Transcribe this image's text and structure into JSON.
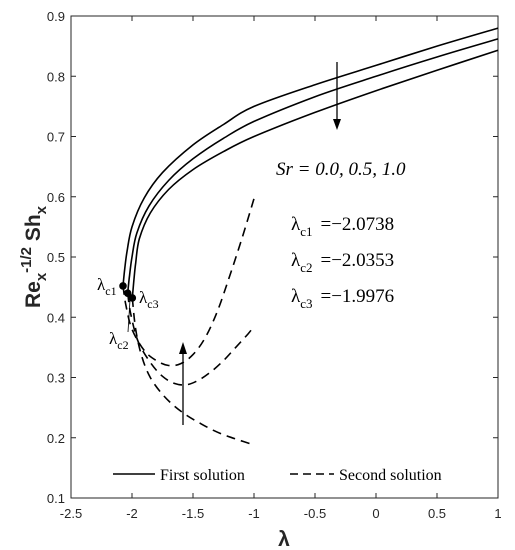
{
  "chart_data": {
    "type": "line",
    "xlabel": "λ",
    "ylabel": {
      "base": "Re",
      "sub1": "x",
      "sup": "-1/2",
      "mid": " Sh",
      "sub2": "x"
    },
    "xlim": [
      -2.5,
      1
    ],
    "ylim": [
      0.1,
      0.9
    ],
    "xticks": [
      -2.5,
      -2,
      -1.5,
      -1,
      -0.5,
      0,
      0.5,
      1
    ],
    "xtick_labels": [
      "-2.5",
      "-2",
      "-1.5",
      "-1",
      "-0.5",
      "0",
      "0.5",
      "1"
    ],
    "yticks": [
      0.1,
      0.2,
      0.3,
      0.4,
      0.5,
      0.6,
      0.7,
      0.8,
      0.9
    ],
    "ytick_labels": [
      "0.1",
      "0.2",
      "0.3",
      "0.4",
      "0.5",
      "0.6",
      "0.7",
      "0.8",
      "0.9"
    ],
    "grid": false,
    "legend": {
      "position": "bottom",
      "entries": [
        {
          "label": "First solution",
          "style": "solid"
        },
        {
          "label": "Second solution",
          "style": "dashed"
        }
      ]
    },
    "series": [
      {
        "style": "solid",
        "x": [
          -2.0738,
          -2.06,
          -2.04,
          -2.0,
          -1.9,
          -1.75,
          -1.5,
          -1.25,
          -1.0,
          -0.5,
          0.0,
          0.5,
          1.0
        ],
        "y": [
          0.452,
          0.48,
          0.51,
          0.55,
          0.598,
          0.64,
          0.686,
          0.72,
          0.75,
          0.786,
          0.818,
          0.85,
          0.88
        ]
      },
      {
        "style": "solid",
        "x": [
          -2.0353,
          -2.02,
          -2.0,
          -1.96,
          -1.86,
          -1.7,
          -1.5,
          -1.25,
          -1.0,
          -0.5,
          0.0,
          0.5,
          1.0
        ],
        "y": [
          0.44,
          0.47,
          0.5,
          0.54,
          0.585,
          0.627,
          0.663,
          0.697,
          0.725,
          0.766,
          0.8,
          0.832,
          0.862
        ]
      },
      {
        "style": "solid",
        "x": [
          -1.9976,
          -1.985,
          -1.97,
          -1.94,
          -1.85,
          -1.7,
          -1.5,
          -1.25,
          -1.0,
          -0.5,
          0.0,
          0.5,
          1.0
        ],
        "y": [
          0.432,
          0.46,
          0.49,
          0.53,
          0.573,
          0.612,
          0.645,
          0.675,
          0.7,
          0.74,
          0.776,
          0.81,
          0.843
        ]
      },
      {
        "style": "dashed",
        "x": [
          -2.0738,
          -2.05,
          -2.0,
          -1.9,
          -1.8,
          -1.7,
          -1.6,
          -1.5,
          -1.4,
          -1.3,
          -1.2,
          -1.1,
          -1.0
        ],
        "y": [
          0.452,
          0.42,
          0.38,
          0.345,
          0.328,
          0.32,
          0.323,
          0.338,
          0.366,
          0.41,
          0.468,
          0.53,
          0.597
        ]
      },
      {
        "style": "dashed",
        "x": [
          -2.0353,
          -2.01,
          -1.95,
          -1.85,
          -1.75,
          -1.65,
          -1.55,
          -1.45,
          -1.35,
          -1.25,
          -1.15,
          -1.05,
          -1.0
        ],
        "y": [
          0.44,
          0.405,
          0.36,
          0.325,
          0.302,
          0.29,
          0.288,
          0.296,
          0.31,
          0.328,
          0.35,
          0.372,
          0.385
        ]
      },
      {
        "style": "dashed",
        "x": [
          -1.9976,
          -1.97,
          -1.92,
          -1.85,
          -1.75,
          -1.65,
          -1.55,
          -1.45,
          -1.35,
          -1.25,
          -1.15,
          -1.0
        ],
        "y": [
          0.432,
          0.38,
          0.335,
          0.3,
          0.272,
          0.252,
          0.237,
          0.225,
          0.214,
          0.205,
          0.198,
          0.188
        ]
      }
    ],
    "critical_points": [
      {
        "label": "λ",
        "sub": "c1",
        "x": -2.0738,
        "y": 0.452
      },
      {
        "label": "λ",
        "sub": "c2",
        "x": -2.0353,
        "y": 0.44
      },
      {
        "label": "λ",
        "sub": "c3",
        "x": -1.9976,
        "y": 0.432
      }
    ],
    "annotations": {
      "sr": "Sr = 0.0, 0.5, 1.0",
      "lambda_values": [
        {
          "sym": "λ",
          "sub": "c1",
          "value": "=−2.0738"
        },
        {
          "sym": "λ",
          "sub": "c2",
          "value": "=−2.0353"
        },
        {
          "sym": "λ",
          "sub": "c3",
          "value": "=−1.9976"
        }
      ]
    }
  }
}
